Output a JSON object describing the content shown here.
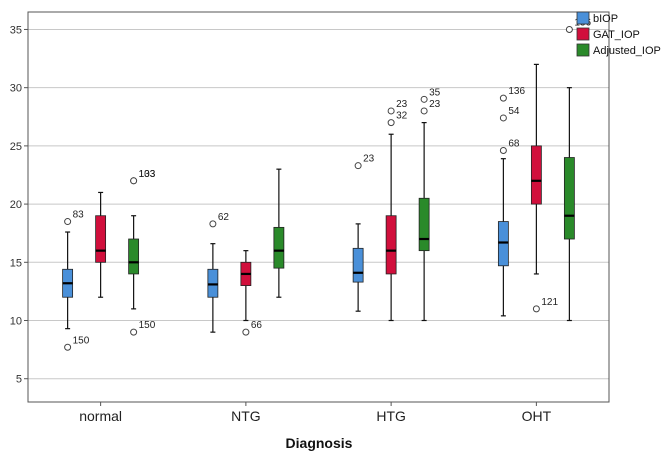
{
  "chart_data": {
    "type": "boxplot",
    "xlabel": "Diagnosis",
    "ylabel": "",
    "ylim": [
      3,
      36.5
    ],
    "yticks": [
      5,
      10,
      15,
      20,
      25,
      30,
      35
    ],
    "grid": "horizontal",
    "legend_position": "top-right",
    "categories": [
      "normal",
      "NTG",
      "HTG",
      "OHT"
    ],
    "series": [
      {
        "name": "bIOP",
        "color": "#4a90d9",
        "boxes": [
          {
            "min": 9.3,
            "q1": 12.0,
            "median": 13.2,
            "q3": 14.4,
            "max": 17.6,
            "outliers": [
              {
                "value": 18.5,
                "label": "83"
              },
              {
                "value": 7.7,
                "label": "150"
              }
            ]
          },
          {
            "min": 9.0,
            "q1": 12.0,
            "median": 13.1,
            "q3": 14.4,
            "max": 16.6,
            "outliers": [
              {
                "value": 18.3,
                "label": "62"
              }
            ]
          },
          {
            "min": 10.8,
            "q1": 13.3,
            "median": 14.1,
            "q3": 16.2,
            "max": 18.3,
            "outliers": [
              {
                "value": 23.3,
                "label": "23"
              }
            ]
          },
          {
            "min": 10.4,
            "q1": 14.7,
            "median": 16.7,
            "q3": 18.5,
            "max": 23.9,
            "outliers": [
              {
                "value": 29.1,
                "label": "136"
              },
              {
                "value": 27.4,
                "label": "54"
              },
              {
                "value": 24.6,
                "label": "68"
              }
            ]
          }
        ]
      },
      {
        "name": "GAT_IOP",
        "color": "#d10f3c",
        "boxes": [
          {
            "min": 12,
            "q1": 15,
            "median": 16,
            "q3": 19,
            "max": 21,
            "outliers": []
          },
          {
            "min": 10,
            "q1": 13,
            "median": 14,
            "q3": 15,
            "max": 16,
            "outliers": [
              {
                "value": 9,
                "label": "66"
              }
            ]
          },
          {
            "min": 10,
            "q1": 14,
            "median": 16,
            "q3": 19,
            "max": 26,
            "outliers": [
              {
                "value": 28,
                "label": "23"
              },
              {
                "value": 27,
                "label": "32"
              }
            ]
          },
          {
            "min": 14,
            "q1": 20,
            "median": 22,
            "q3": 25,
            "max": 32,
            "outliers": [
              {
                "value": 11,
                "label": "121"
              }
            ]
          }
        ]
      },
      {
        "name": "Adjusted_IOP",
        "color": "#2a8a2a",
        "boxes": [
          {
            "min": 11,
            "q1": 14,
            "median": 15,
            "q3": 17,
            "max": 19,
            "outliers": [
              {
                "value": 22,
                "label": "103"
              },
              {
                "value": 22,
                "label": "133"
              },
              {
                "value": 9,
                "label": "150"
              }
            ]
          },
          {
            "min": 12,
            "q1": 14.5,
            "median": 16,
            "q3": 18,
            "max": 23,
            "outliers": []
          },
          {
            "min": 10,
            "q1": 16,
            "median": 17,
            "q3": 20.5,
            "max": 27,
            "outliers": [
              {
                "value": 29,
                "label": "35"
              },
              {
                "value": 28,
                "label": "23"
              }
            ]
          },
          {
            "min": 10,
            "q1": 17,
            "median": 19,
            "q3": 24,
            "max": 30,
            "outliers": [
              {
                "value": 35,
                "label": "136"
              }
            ]
          }
        ]
      }
    ]
  }
}
